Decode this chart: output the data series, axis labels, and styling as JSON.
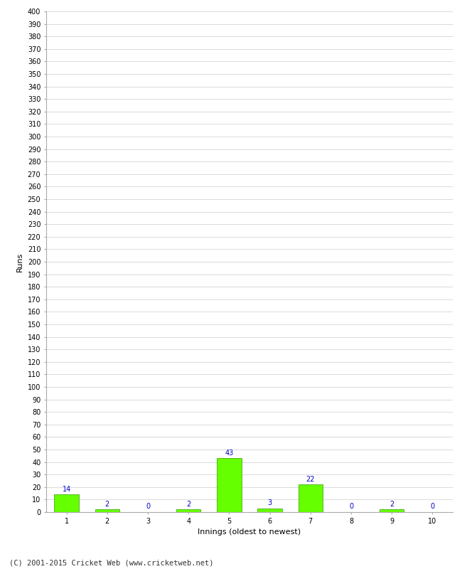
{
  "title": "",
  "xlabel": "Innings (oldest to newest)",
  "ylabel": "Runs",
  "categories": [
    1,
    2,
    3,
    4,
    5,
    6,
    7,
    8,
    9,
    10
  ],
  "values": [
    14,
    2,
    0,
    2,
    43,
    3,
    22,
    0,
    2,
    0
  ],
  "bar_color": "#66ff00",
  "bar_edge_color": "#339900",
  "label_color": "#0000cc",
  "label_fontsize": 7,
  "ylim": [
    0,
    400
  ],
  "ytick_step": 10,
  "grid_color": "#cccccc",
  "background_color": "#ffffff",
  "footer": "(C) 2001-2015 Cricket Web (www.cricketweb.net)",
  "footer_fontsize": 7.5,
  "axis_label_fontsize": 8,
  "tick_fontsize": 7
}
